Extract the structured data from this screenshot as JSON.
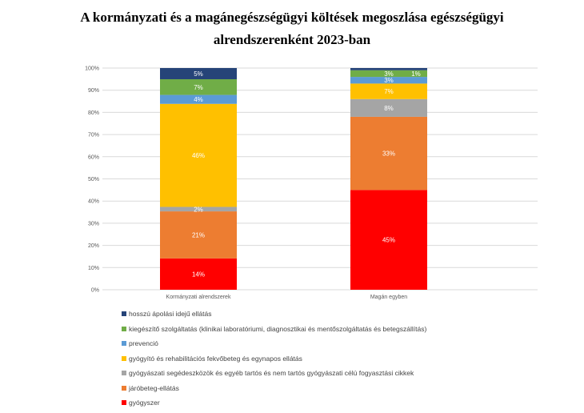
{
  "title_lines": [
    "A kormányzati és a magánegészségügyi költések megoszlása egészségügyi",
    "alrendszerenként 2023-ban"
  ],
  "chart_data": {
    "type": "bar",
    "stacked": true,
    "title": "A kormányzati és a magánegészségügyi költések megoszlása egészségügyi alrendszerenként 2023-ban",
    "categories": [
      "Kormányzati alrendszerek",
      "Magán egyben"
    ],
    "ylim": [
      0,
      100
    ],
    "yticks": [
      "0%",
      "10%",
      "20%",
      "30%",
      "40%",
      "50%",
      "60%",
      "70%",
      "80%",
      "90%",
      "100%"
    ],
    "grid": true,
    "legend_position": "bottom",
    "series": [
      {
        "name": "gyógyszer",
        "color": "#ff0000",
        "values": [
          14,
          45
        ]
      },
      {
        "name": "járóbeteg-ellátás",
        "color": "#ed7d31",
        "values": [
          21,
          33
        ]
      },
      {
        "name": "gyógyászati segédeszközök és egyéb tartós és nem tartós gyógyászati célú fogyasztási cikkek",
        "color": "#a5a5a5",
        "values": [
          2,
          8
        ]
      },
      {
        "name": "gyógyító és rehabilitációs fekvőbeteg és egynapos ellátás",
        "color": "#ffc000",
        "values": [
          46,
          7
        ]
      },
      {
        "name": "prevenció",
        "color": "#5b9bd5",
        "values": [
          4,
          3
        ]
      },
      {
        "name": "kiegészítő szolgáltatás (klinikai laboratóriumi, diagnosztikai és mentőszolgáltatás és betegszállítás)",
        "color": "#70ad47",
        "values": [
          7,
          3
        ]
      },
      {
        "name": "hosszú ápolási idejű ellátás",
        "color": "#264478",
        "values": [
          5,
          1
        ]
      }
    ]
  }
}
